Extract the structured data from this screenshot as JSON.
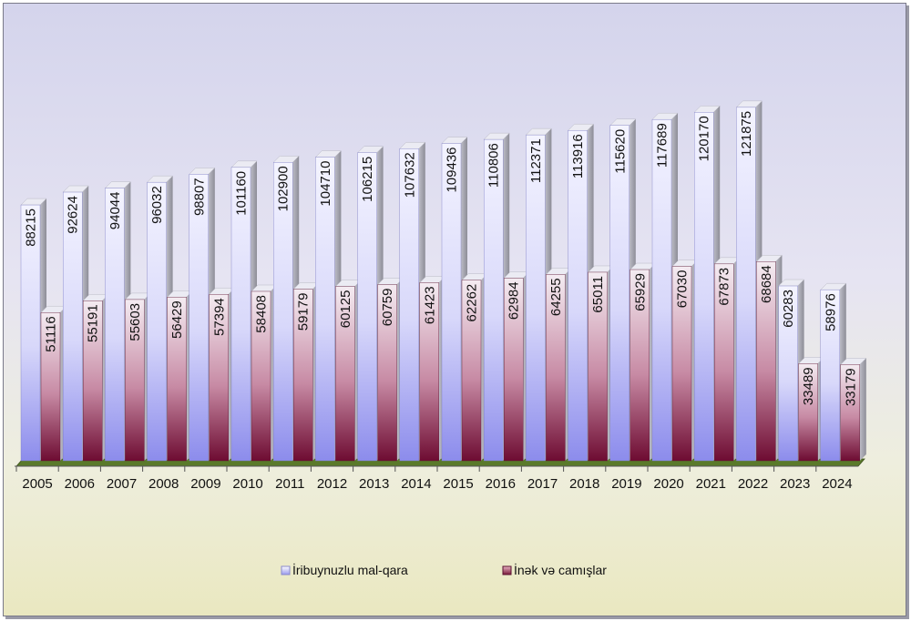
{
  "chart_data": {
    "type": "bar",
    "title": "",
    "xlabel": "",
    "ylabel": "",
    "ylim": [
      0,
      130000
    ],
    "categories": [
      "2005",
      "2006",
      "2007",
      "2008",
      "2009",
      "2010",
      "2011",
      "2012",
      "2013",
      "2014",
      "2015",
      "2016",
      "2017",
      "2018",
      "2019",
      "2020",
      "2021",
      "2022",
      "2023",
      "2024"
    ],
    "series": [
      {
        "name": "İribuynuzlu mal-qara",
        "color": "#c8c8f4",
        "values": [
          88215,
          92624,
          94044,
          96032,
          98807,
          101160,
          102900,
          104710,
          106215,
          107632,
          109436,
          110806,
          112371,
          113916,
          115620,
          117689,
          120170,
          121875,
          60283,
          58976
        ]
      },
      {
        "name": "İnək və camışlar",
        "color": "#7a1a3a",
        "values": [
          51116,
          55191,
          55603,
          56429,
          57394,
          58408,
          59179,
          60125,
          60759,
          61423,
          62262,
          62984,
          64255,
          65011,
          65929,
          67030,
          67873,
          68684,
          33489,
          33179
        ]
      }
    ],
    "legend_position": "bottom"
  }
}
